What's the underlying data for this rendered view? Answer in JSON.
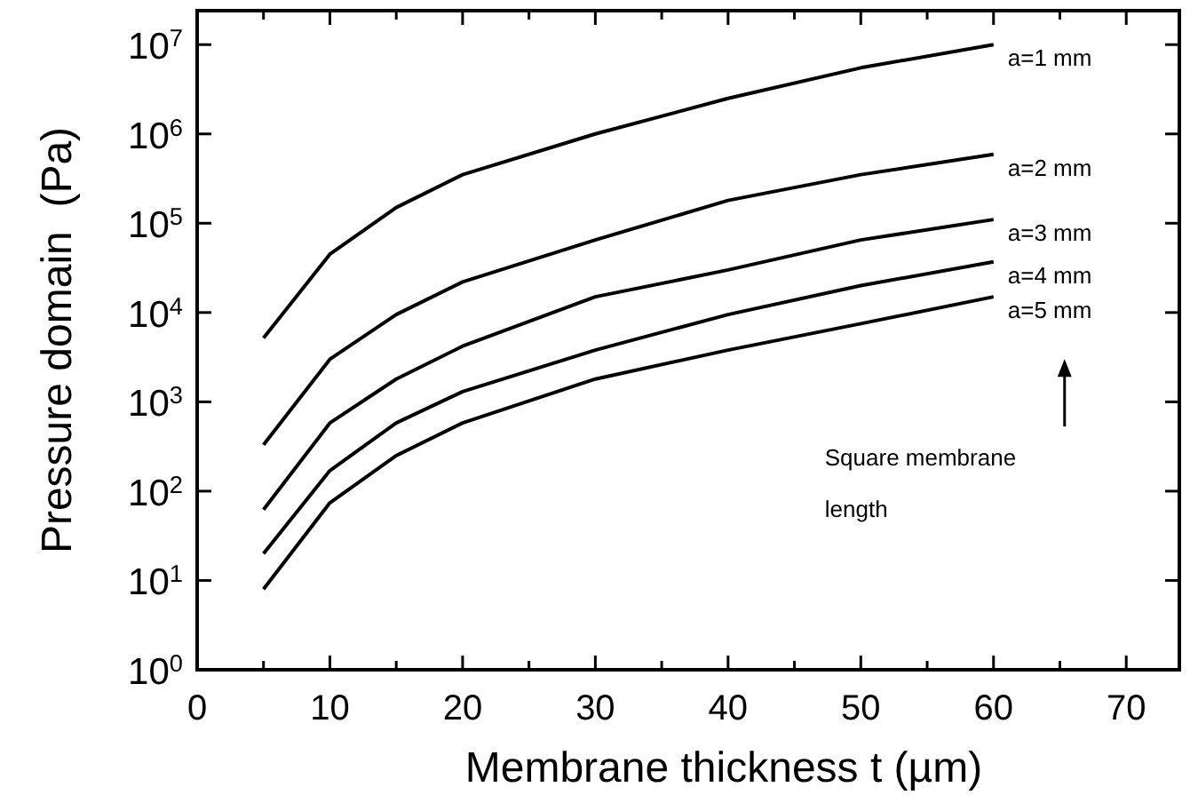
{
  "chart_data": {
    "type": "line",
    "xlabel": "Membrane thickness t (µm)",
    "ylabel": "Pressure domain  (Pa)",
    "log": "y",
    "xlim": [
      0,
      74
    ],
    "ylim": [
      1,
      24000000
    ],
    "xticks": [
      0,
      {
        "value": 5,
        "label": null
      },
      10,
      {
        "value": 15,
        "label": null
      },
      20,
      {
        "value": 25,
        "label": null
      },
      30,
      {
        "value": 35,
        "label": null
      },
      40,
      {
        "value": 45,
        "label": null
      },
      50,
      {
        "value": 55,
        "label": null
      },
      60,
      {
        "value": 65,
        "label": null
      },
      70
    ],
    "yticks": [
      {
        "value": 1,
        "label": "10$^{0}$"
      },
      {
        "value": 10,
        "label": "10$^{1}$"
      },
      {
        "value": 100,
        "label": "10$^{2}$"
      },
      {
        "value": 1000,
        "label": "10$^{3}$"
      },
      {
        "value": 10000,
        "label": "10$^{4}$"
      },
      {
        "value": 100000,
        "label": "10$^{5}$"
      },
      {
        "value": 1000000,
        "label": "10$^{6}$"
      },
      {
        "value": 10000000,
        "label": "10$^{7}$"
      }
    ],
    "x": [
      5,
      10,
      15,
      20,
      30,
      40,
      50,
      60
    ],
    "grid": false,
    "legend": "right",
    "marker": "none",
    "line_style": "solid",
    "series": [
      {
        "name": "a=1 mm",
        "color": "#000000",
        "values": [
          5200,
          45000,
          150000,
          350000,
          1000000,
          2500000,
          5500000,
          10000000
        ]
      },
      {
        "name": "a=2 mm",
        "color": "#000000",
        "values": [
          330,
          3000,
          9500,
          22000,
          65000,
          180000,
          350000,
          590000
        ]
      },
      {
        "name": "a=3 mm",
        "color": "#000000",
        "values": [
          62,
          580,
          1800,
          4200,
          15000,
          30000,
          65000,
          110000
        ]
      },
      {
        "name": "a=4 mm",
        "color": "#000000",
        "values": [
          20,
          170,
          580,
          1300,
          3800,
          9500,
          20000,
          37000
        ]
      },
      {
        "name": "a=5 mm",
        "color": "#000000",
        "values": [
          8,
          74,
          250,
          580,
          1800,
          3800,
          7500,
          15000
        ]
      }
    ],
    "annotations": [
      "Square membrane length"
    ]
  }
}
